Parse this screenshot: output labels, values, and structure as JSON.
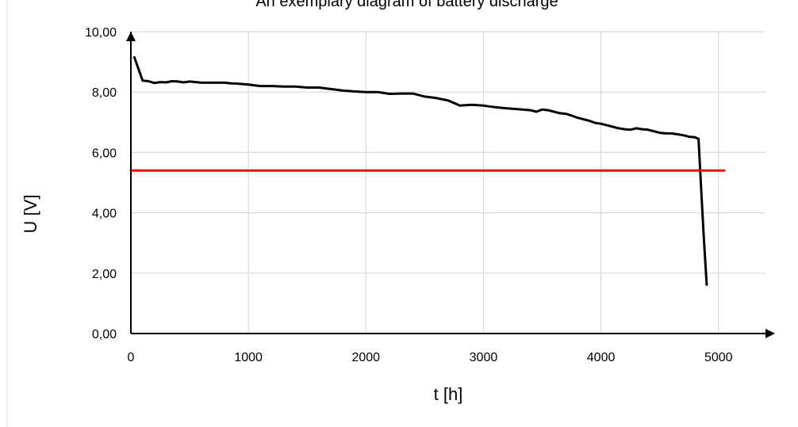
{
  "chart_data": {
    "type": "line",
    "title": "An exemplary diagram of battery discharge",
    "xlabel": "t [h]",
    "ylabel": "U [V]",
    "xlim": [
      0,
      5400
    ],
    "ylim": [
      0,
      10
    ],
    "x_ticks": [
      "0",
      "1000",
      "2000",
      "3000",
      "4000",
      "5000"
    ],
    "y_ticks": [
      "0,00",
      "2,00",
      "4,00",
      "6,00",
      "8,00",
      "10,00"
    ],
    "grid": true,
    "legend": "none",
    "series": [
      {
        "color": "#000000",
        "x": [
          30,
          100,
          150,
          200,
          250,
          300,
          350,
          400,
          450,
          500,
          550,
          600,
          700,
          800,
          850,
          900,
          1000,
          1100,
          1200,
          1300,
          1400,
          1500,
          1600,
          1700,
          1800,
          1900,
          2000,
          2100,
          2200,
          2300,
          2400,
          2500,
          2600,
          2700,
          2800,
          2900,
          3000,
          3100,
          3200,
          3300,
          3400,
          3450,
          3500,
          3550,
          3600,
          3650,
          3700,
          3750,
          3800,
          3850,
          3900,
          3950,
          4000,
          4050,
          4100,
          4150,
          4200,
          4250,
          4300,
          4350,
          4400,
          4450,
          4500,
          4550,
          4600,
          4650,
          4700,
          4750,
          4800,
          4830,
          4850,
          4875,
          4900
        ],
        "y": [
          9.15,
          8.38,
          8.36,
          8.3,
          8.33,
          8.32,
          8.36,
          8.35,
          8.32,
          8.35,
          8.33,
          8.31,
          8.31,
          8.31,
          8.29,
          8.28,
          8.25,
          8.2,
          8.2,
          8.18,
          8.18,
          8.15,
          8.15,
          8.1,
          8.05,
          8.02,
          8.0,
          8.0,
          7.94,
          7.95,
          7.95,
          7.85,
          7.8,
          7.72,
          7.55,
          7.58,
          7.55,
          7.5,
          7.46,
          7.43,
          7.4,
          7.35,
          7.42,
          7.4,
          7.35,
          7.3,
          7.28,
          7.22,
          7.15,
          7.1,
          7.05,
          6.98,
          6.95,
          6.9,
          6.85,
          6.8,
          6.77,
          6.75,
          6.8,
          6.77,
          6.75,
          6.7,
          6.65,
          6.63,
          6.63,
          6.6,
          6.57,
          6.52,
          6.5,
          6.45,
          5.0,
          3.2,
          1.62
        ]
      },
      {
        "color": "#ff0000",
        "x": [
          0,
          5050
        ],
        "y": [
          5.4,
          5.4
        ]
      }
    ]
  }
}
